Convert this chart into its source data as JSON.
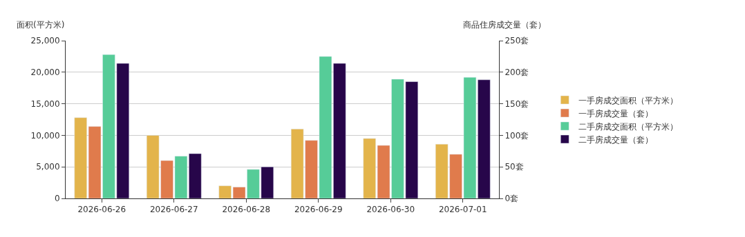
{
  "chart_data": {
    "type": "bar",
    "ylabel": "面积(平方米)",
    "y2label": "商品住房成交量（套）",
    "categories": [
      "2026-06-26",
      "2026-06-27",
      "2026-06-28",
      "2026-06-29",
      "2026-06-30",
      "2026-07-01"
    ],
    "series": [
      {
        "name": "一手房成交面积（平方米）",
        "color": "#e3b44b",
        "values": [
          12800,
          10000,
          2000,
          11000,
          9500,
          8600
        ]
      },
      {
        "name": "一手房成交量（套）",
        "color": "#e07b4c",
        "axis": "y2",
        "values": [
          114,
          60,
          18,
          92,
          84,
          70
        ]
      },
      {
        "name": "二手房成交面积（平方米）",
        "color": "#56cc98",
        "values": [
          22800,
          6700,
          4600,
          22500,
          18900,
          19200
        ]
      },
      {
        "name": "二手房成交量（套）",
        "color": "#27064a",
        "axis": "y2",
        "values": [
          214,
          71,
          50,
          214,
          185,
          188
        ]
      }
    ],
    "ylim": [
      0,
      25000
    ],
    "yticks": [
      0,
      {
        "value": 5000,
        "label": "5,000"
      },
      {
        "value": 10000,
        "label": "10,000"
      },
      {
        "value": 15000,
        "label": "15,000"
      },
      {
        "value": 20000,
        "label": "20,000"
      },
      {
        "value": 25000,
        "label": "25,000"
      }
    ],
    "y2lim": [
      0,
      250
    ],
    "y2ticks": [
      {
        "value": 0,
        "label": "0套"
      },
      {
        "value": 50,
        "label": "50套"
      },
      {
        "value": 100,
        "label": "100套"
      },
      {
        "value": 150,
        "label": "150套"
      },
      {
        "value": 200,
        "label": "200套"
      },
      {
        "value": 250,
        "label": "250套"
      }
    ],
    "grid": "y",
    "legend": "right"
  }
}
